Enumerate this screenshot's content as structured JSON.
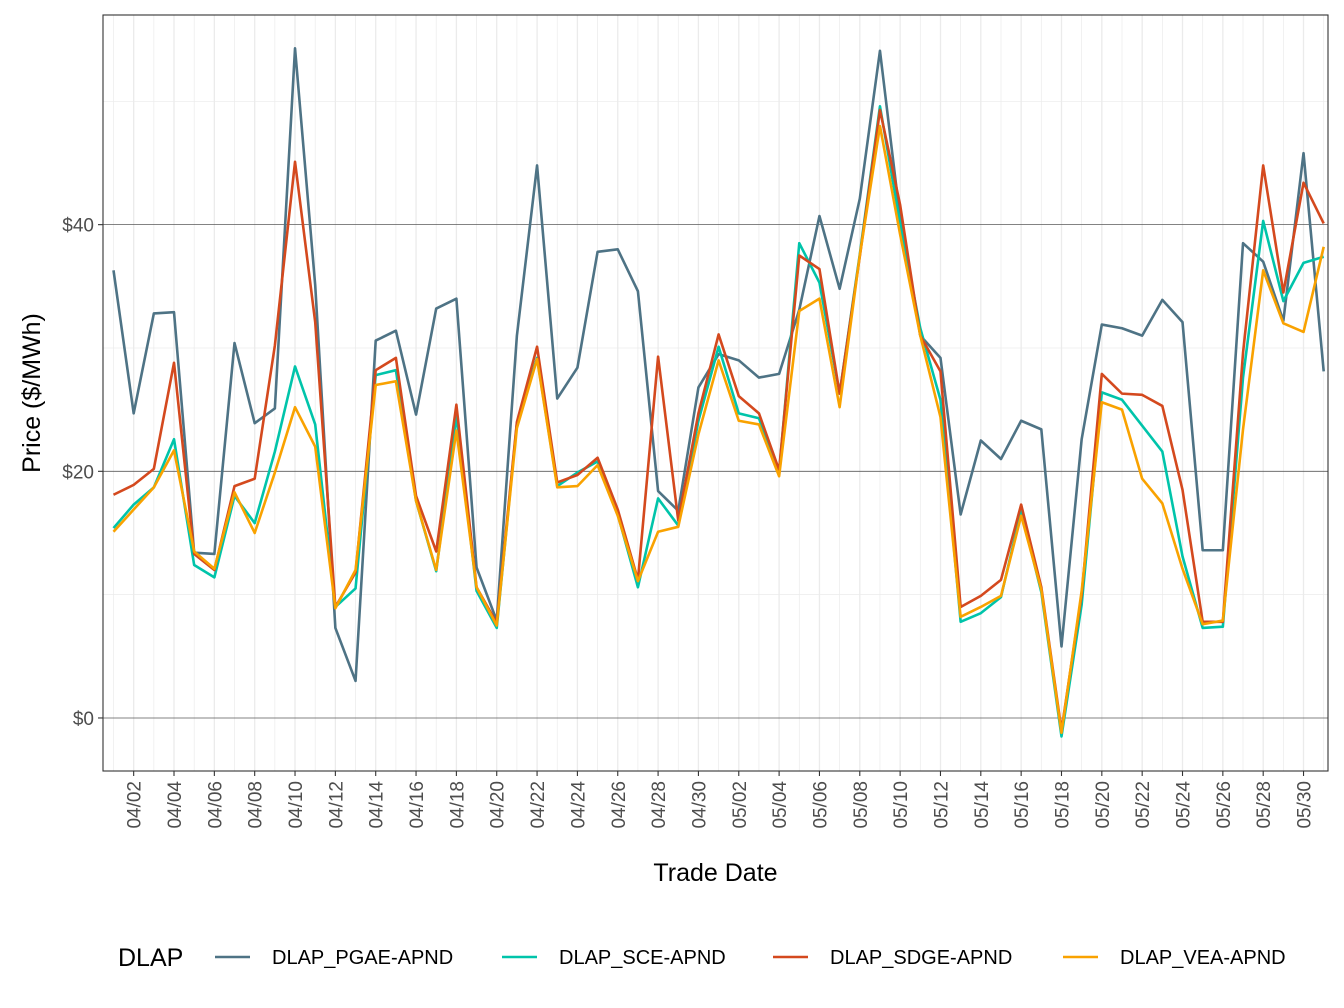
{
  "chart_data": {
    "type": "line",
    "title": "",
    "xlabel": "Trade Date",
    "ylabel": "Price ($/MWh)",
    "ylim": [
      -4.3,
      57.0
    ],
    "y_ticks": [
      0,
      20,
      40
    ],
    "y_tick_labels": [
      "$0",
      "$20",
      "$40"
    ],
    "x_tick_labels": [
      "04/02",
      "04/04",
      "04/06",
      "04/08",
      "04/10",
      "04/12",
      "04/14",
      "04/16",
      "04/18",
      "04/20",
      "04/22",
      "04/24",
      "04/26",
      "04/28",
      "04/30",
      "05/02",
      "05/04",
      "05/06",
      "05/08",
      "05/10",
      "05/12",
      "05/14",
      "05/16",
      "05/18",
      "05/20",
      "05/22",
      "05/24",
      "05/26",
      "05/28",
      "05/30"
    ],
    "x": [
      "04/01",
      "04/02",
      "04/03",
      "04/04",
      "04/05",
      "04/06",
      "04/07",
      "04/08",
      "04/09",
      "04/10",
      "04/11",
      "04/12",
      "04/13",
      "04/14",
      "04/15",
      "04/16",
      "04/17",
      "04/18",
      "04/19",
      "04/20",
      "04/21",
      "04/22",
      "04/23",
      "04/24",
      "04/25",
      "04/26",
      "04/27",
      "04/28",
      "04/29",
      "04/30",
      "05/01",
      "05/02",
      "05/03",
      "05/04",
      "05/05",
      "05/06",
      "05/07",
      "05/08",
      "05/09",
      "05/10",
      "05/11",
      "05/12",
      "05/13",
      "05/14",
      "05/15",
      "05/16",
      "05/17",
      "05/18",
      "05/19",
      "05/20",
      "05/21",
      "05/22",
      "05/23",
      "05/24",
      "05/25",
      "05/26",
      "05/27",
      "05/28",
      "05/29",
      "05/30",
      "05/31"
    ],
    "grid": true,
    "legend": {
      "title": "DLAP",
      "position": "bottom"
    },
    "series": [
      {
        "name": "DLAP_PGAE-APND",
        "color": "#4e7385",
        "values": [
          36.3,
          24.7,
          32.8,
          32.9,
          13.4,
          13.3,
          30.4,
          23.9,
          25.1,
          54.3,
          35.1,
          7.3,
          3.0,
          30.6,
          31.4,
          24.6,
          33.2,
          34.0,
          12.2,
          7.9,
          31.0,
          44.8,
          25.9,
          28.4,
          37.8,
          38.0,
          34.6,
          18.4,
          16.8,
          26.8,
          29.5,
          29.0,
          27.6,
          27.9,
          33.1,
          40.7,
          34.8,
          42.1,
          54.1,
          40.5,
          31.0,
          29.2,
          16.5,
          22.5,
          21.0,
          24.1,
          23.4,
          5.8,
          22.6,
          31.9,
          31.6,
          31.0,
          33.9,
          32.1,
          13.6,
          13.6,
          38.5,
          37.0,
          32.2,
          45.8,
          28.1
        ]
      },
      {
        "name": "DLAP_SCE-APND",
        "color": "#00c4aa",
        "values": [
          15.4,
          17.3,
          18.7,
          22.6,
          12.4,
          11.4,
          18.0,
          15.8,
          21.6,
          28.5,
          23.8,
          9.0,
          10.5,
          27.8,
          28.2,
          17.6,
          11.9,
          24.5,
          10.3,
          7.3,
          23.9,
          29.2,
          18.8,
          19.9,
          20.8,
          16.5,
          10.6,
          17.8,
          15.6,
          24.1,
          30.1,
          24.7,
          24.3,
          19.9,
          38.5,
          35.3,
          26.3,
          37.6,
          49.6,
          40.1,
          31.6,
          25.8,
          7.8,
          8.5,
          9.8,
          16.8,
          10.2,
          -1.5,
          9.2,
          26.4,
          25.8,
          23.7,
          21.6,
          13.1,
          7.3,
          7.4,
          27.6,
          40.3,
          33.8,
          36.9,
          37.4
        ]
      },
      {
        "name": "DLAP_SDGE-APND",
        "color": "#d4491e",
        "values": [
          18.1,
          18.9,
          20.2,
          28.8,
          13.3,
          12.0,
          18.8,
          19.4,
          30.2,
          45.1,
          32.1,
          9.0,
          11.8,
          28.2,
          29.2,
          18.0,
          13.5,
          25.4,
          10.6,
          7.7,
          24.0,
          30.1,
          19.1,
          19.7,
          21.1,
          16.9,
          11.2,
          29.3,
          16.0,
          24.7,
          31.1,
          26.1,
          24.7,
          20.1,
          37.5,
          36.4,
          26.3,
          37.4,
          49.3,
          41.6,
          31.0,
          28.1,
          9.0,
          9.9,
          11.2,
          17.3,
          10.6,
          -1.0,
          10.0,
          27.9,
          26.3,
          26.2,
          25.3,
          18.5,
          7.8,
          7.8,
          29.6,
          44.8,
          34.5,
          43.4,
          40.1
        ]
      },
      {
        "name": "DLAP_VEA-APND",
        "color": "#f9a200",
        "values": [
          15.1,
          16.9,
          18.7,
          21.7,
          13.5,
          12.1,
          18.3,
          15.0,
          19.9,
          25.2,
          22.0,
          8.9,
          12.0,
          27.0,
          27.3,
          17.6,
          12.0,
          23.3,
          10.6,
          7.5,
          23.5,
          29.1,
          18.7,
          18.8,
          20.5,
          16.4,
          11.1,
          15.1,
          15.5,
          23.0,
          29.0,
          24.1,
          23.8,
          19.6,
          33.0,
          34.0,
          25.2,
          37.5,
          48.0,
          39.2,
          31.0,
          24.4,
          8.2,
          9.0,
          9.9,
          16.4,
          10.4,
          -1.2,
          10.3,
          25.6,
          25.0,
          19.4,
          17.4,
          12.1,
          7.6,
          7.9,
          23.4,
          36.3,
          32.0,
          31.3,
          38.2
        ]
      }
    ]
  }
}
